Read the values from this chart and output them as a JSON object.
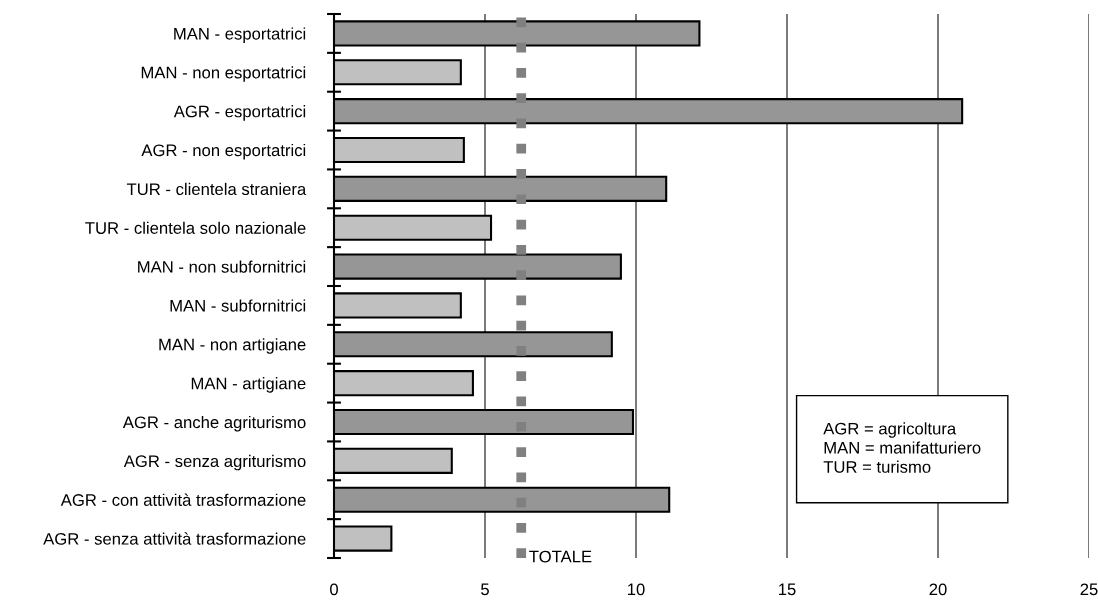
{
  "chart_data": {
    "type": "bar",
    "orientation": "horizontal",
    "categories": [
      "MAN - esportatrici",
      "MAN - non esportatrici",
      "AGR - esportatrici",
      "AGR - non esportatrici",
      "TUR - clientela straniera",
      "TUR - clientela solo nazionale",
      "MAN - non subfornitrici",
      "MAN - subfornitrici",
      "MAN - non artigiane",
      "MAN - artigiane",
      "AGR - anche agriturismo",
      "AGR - senza agriturismo",
      "AGR - con attività trasformazione",
      "AGR - senza attività trasformazione"
    ],
    "values": [
      12.1,
      4.2,
      20.8,
      4.3,
      11.0,
      5.2,
      9.5,
      4.2,
      9.2,
      4.6,
      9.9,
      3.9,
      11.1,
      1.9
    ],
    "colors": [
      "#969696",
      "#c0c0c0",
      "#969696",
      "#c0c0c0",
      "#969696",
      "#c0c0c0",
      "#969696",
      "#c0c0c0",
      "#969696",
      "#c0c0c0",
      "#969696",
      "#c0c0c0",
      "#969696",
      "#c0c0c0"
    ],
    "xlim": [
      0,
      25
    ],
    "xticks": [
      0,
      5,
      10,
      15,
      20,
      25
    ],
    "grid": "x",
    "ref_lines": [
      {
        "axis": "x",
        "value": 6.2,
        "label": "TOTALE",
        "color": "#808080",
        "line_style": "dotted"
      }
    ],
    "annotations": [
      "AGR = agricoltura\nMAN = manifatturiero\nTUR = turismo"
    ]
  }
}
